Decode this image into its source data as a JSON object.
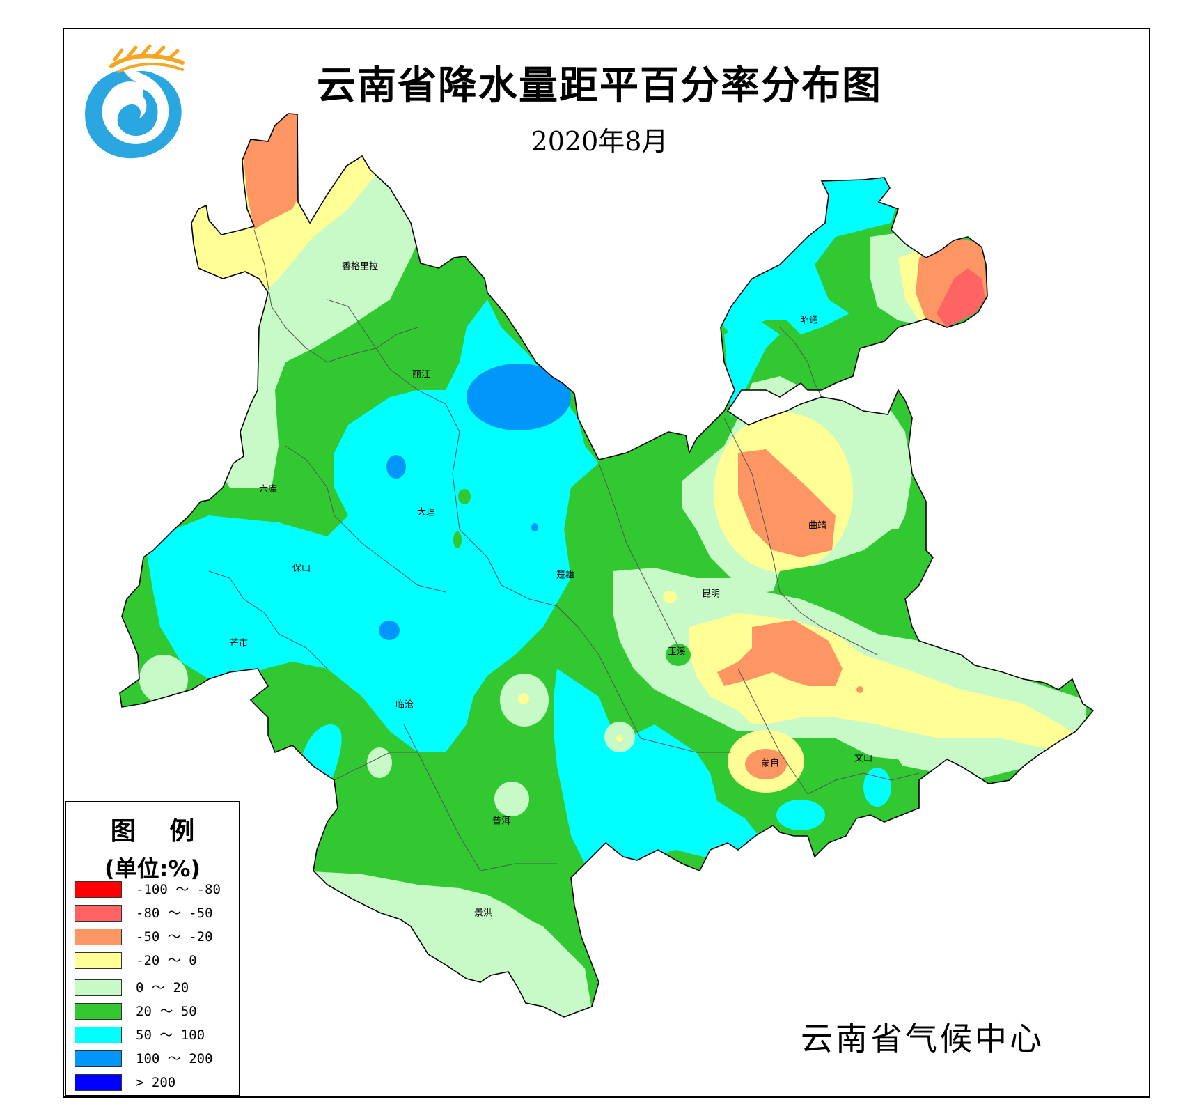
{
  "title": "云南省降水量距平百分率分布图",
  "subtitle": "2020年8月",
  "agency": "云南省气候中心",
  "legend": {
    "title": "图 例",
    "unit": "(单位:%)",
    "items": [
      {
        "label": "-100 ～ -80",
        "color": "#ff0000"
      },
      {
        "label": "-80 ～ -50",
        "color": "#fe6464"
      },
      {
        "label": "-50 ～ -20",
        "color": "#fe9664"
      },
      {
        "label": "-20 ～ 0",
        "color": "#ffff96"
      },
      {
        "label": "0 ～ 20",
        "color": "#c8fac8"
      },
      {
        "label": "20 ～ 50",
        "color": "#32c832"
      },
      {
        "label": "50 ～ 100",
        "color": "#00ffff"
      },
      {
        "label": "100 ～ 200",
        "color": "#0096fa"
      },
      {
        "label": "> 200",
        "color": "#0000ff"
      }
    ]
  },
  "cities": [
    {
      "name": "香格里拉",
      "key": "xianggelila"
    },
    {
      "name": "丽江",
      "key": "lijiang"
    },
    {
      "name": "六库",
      "key": "liuku"
    },
    {
      "name": "大理",
      "key": "dali"
    },
    {
      "name": "保山",
      "key": "baoshan"
    },
    {
      "name": "芒市",
      "key": "mangshi"
    },
    {
      "name": "临沧",
      "key": "lincang"
    },
    {
      "name": "楚雄",
      "key": "chuxiong"
    },
    {
      "name": "昆明",
      "key": "kunming"
    },
    {
      "name": "玉溪",
      "key": "yuxi"
    },
    {
      "name": "昭通",
      "key": "zhaotong"
    },
    {
      "name": "曲靖",
      "key": "qujing"
    },
    {
      "name": "蒙自",
      "key": "mengzi"
    },
    {
      "name": "文山",
      "key": "wenshan"
    },
    {
      "name": "普洱",
      "key": "puer"
    },
    {
      "name": "景洪",
      "key": "jinghong"
    }
  ],
  "logo": {
    "name": "云南省气候中心 logo"
  }
}
